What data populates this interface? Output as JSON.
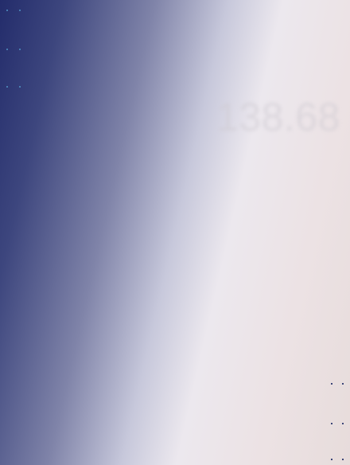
{
  "colors": {
    "gradient_dark": "#232c6b",
    "gradient_light": "#ece8ee",
    "gradient_blush": "#e7dcdb",
    "edge_mark": "#4f8fc0",
    "row_dot": "#3b4577"
  },
  "edge_marks": [
    {
      "id": "edge-mark-1"
    },
    {
      "id": "edge-mark-2"
    },
    {
      "id": "edge-mark-3"
    }
  ],
  "summary": {
    "big_value": "138.68"
  },
  "rows_dots": [
    {
      "id": "row-dots-1"
    },
    {
      "id": "row-dots-2"
    },
    {
      "id": "row-dots-3"
    }
  ]
}
